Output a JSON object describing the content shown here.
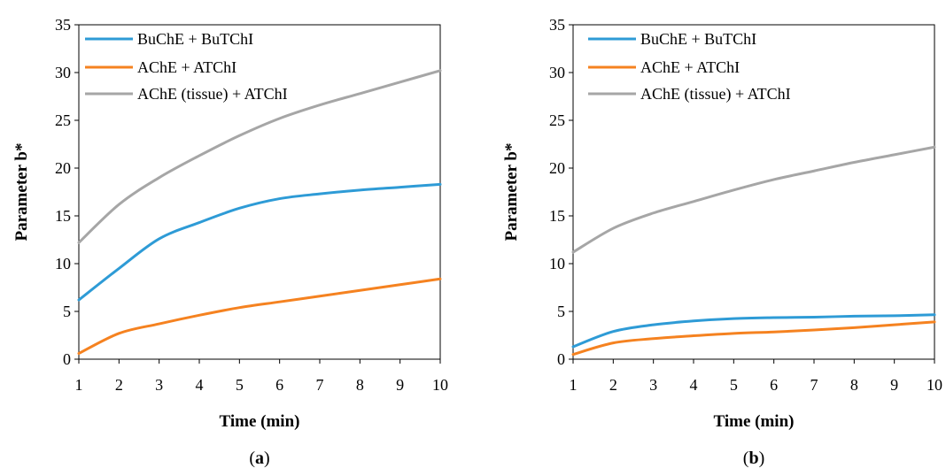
{
  "chart_data": [
    {
      "type": "line",
      "panel_caption": {
        "open": "(",
        "letter": "a",
        "close": ")"
      },
      "xlabel": "Time (min)",
      "ylabel": "Parameter b*",
      "xlim": [
        1,
        10
      ],
      "ylim": [
        0,
        35
      ],
      "x_ticks": [
        "1",
        "2",
        "3",
        "4",
        "5",
        "6",
        "7",
        "8",
        "9",
        "10"
      ],
      "y_ticks": [
        "0",
        "5",
        "10",
        "15",
        "20",
        "25",
        "30",
        "35"
      ],
      "grid": false,
      "legend_position": "top-left",
      "x": [
        1,
        2,
        3,
        4,
        5,
        6,
        7,
        8,
        9,
        10
      ],
      "series": [
        {
          "name": "BuChE + BuTChI",
          "color": "#2E9BD6",
          "values": [
            6.2,
            9.5,
            12.6,
            14.3,
            15.8,
            16.8,
            17.3,
            17.7,
            18.0,
            18.3
          ]
        },
        {
          "name": "AChE + ATChI",
          "color": "#F58220",
          "values": [
            0.6,
            2.7,
            3.7,
            4.6,
            5.4,
            6.0,
            6.6,
            7.2,
            7.8,
            8.4
          ]
        },
        {
          "name": "AChE (tissue) + ATChI",
          "color": "#A6A6A6",
          "values": [
            12.2,
            16.2,
            19.0,
            21.3,
            23.4,
            25.2,
            26.6,
            27.8,
            29.0,
            30.2
          ]
        }
      ]
    },
    {
      "type": "line",
      "panel_caption": {
        "open": "(",
        "letter": "b",
        "close": ")"
      },
      "xlabel": "Time (min)",
      "ylabel": "Parameter b*",
      "xlim": [
        1,
        10
      ],
      "ylim": [
        0,
        35
      ],
      "x_ticks": [
        "1",
        "2",
        "3",
        "4",
        "5",
        "6",
        "7",
        "8",
        "9",
        "10"
      ],
      "y_ticks": [
        "0",
        "5",
        "10",
        "15",
        "20",
        "25",
        "30",
        "35"
      ],
      "grid": false,
      "legend_position": "top-left",
      "x": [
        1,
        2,
        3,
        4,
        5,
        6,
        7,
        8,
        9,
        10
      ],
      "series": [
        {
          "name": "BuChE + BuTChI",
          "color": "#2E9BD6",
          "values": [
            1.3,
            2.9,
            3.6,
            4.0,
            4.25,
            4.35,
            4.4,
            4.5,
            4.55,
            4.65
          ]
        },
        {
          "name": "AChE + ATChI",
          "color": "#F58220",
          "values": [
            0.5,
            1.7,
            2.15,
            2.45,
            2.7,
            2.85,
            3.05,
            3.3,
            3.6,
            3.9
          ]
        },
        {
          "name": "AChE (tissue) + ATChI",
          "color": "#A6A6A6",
          "values": [
            11.2,
            13.7,
            15.3,
            16.5,
            17.7,
            18.8,
            19.7,
            20.6,
            21.4,
            22.2
          ]
        }
      ]
    }
  ]
}
